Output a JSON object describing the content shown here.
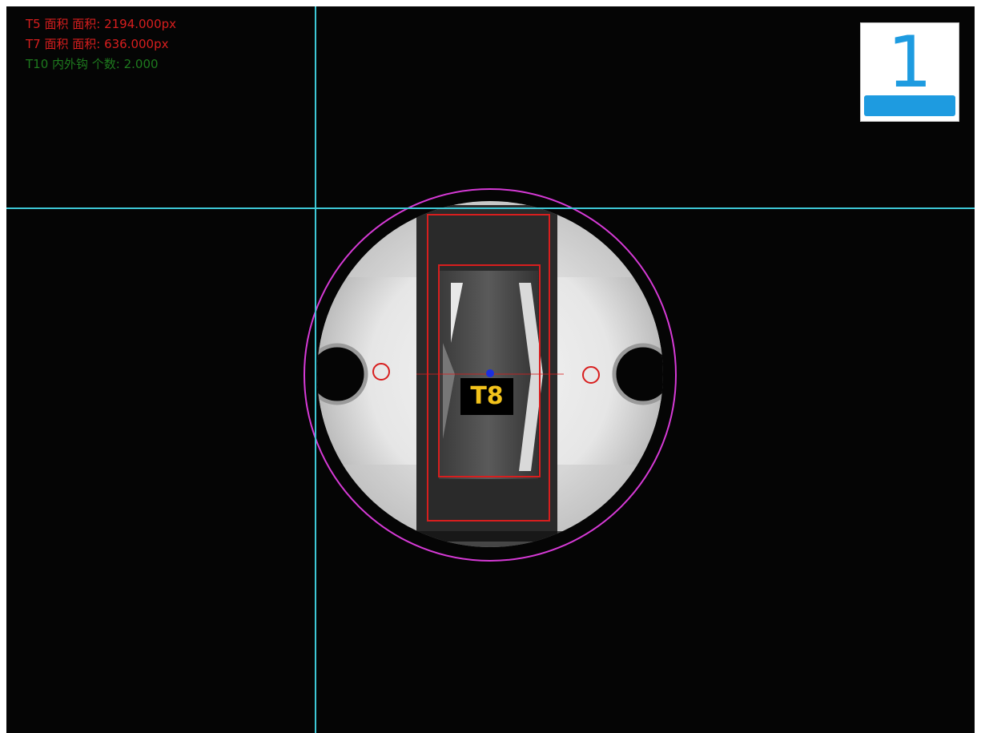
{
  "overlay": {
    "lines": [
      {
        "text": "T5 面积 面积: 2194.000px",
        "color": "#d81e1e"
      },
      {
        "text": "T7 面积 面积: 636.000px",
        "color": "#d81e1e"
      },
      {
        "text": "T10 内外钩 个数: 2.000",
        "color": "#1e7a1e"
      }
    ]
  },
  "camera_badge": {
    "number": "1",
    "color": "#1e9be0"
  },
  "tool_label": {
    "text": "T8",
    "color": "#f2c21b"
  },
  "colors": {
    "crosshair": "#3ec8d6",
    "roi_rect": "#d81e1e",
    "outer_circle": "#d63ad6",
    "center_point": "#1b2fe0"
  }
}
